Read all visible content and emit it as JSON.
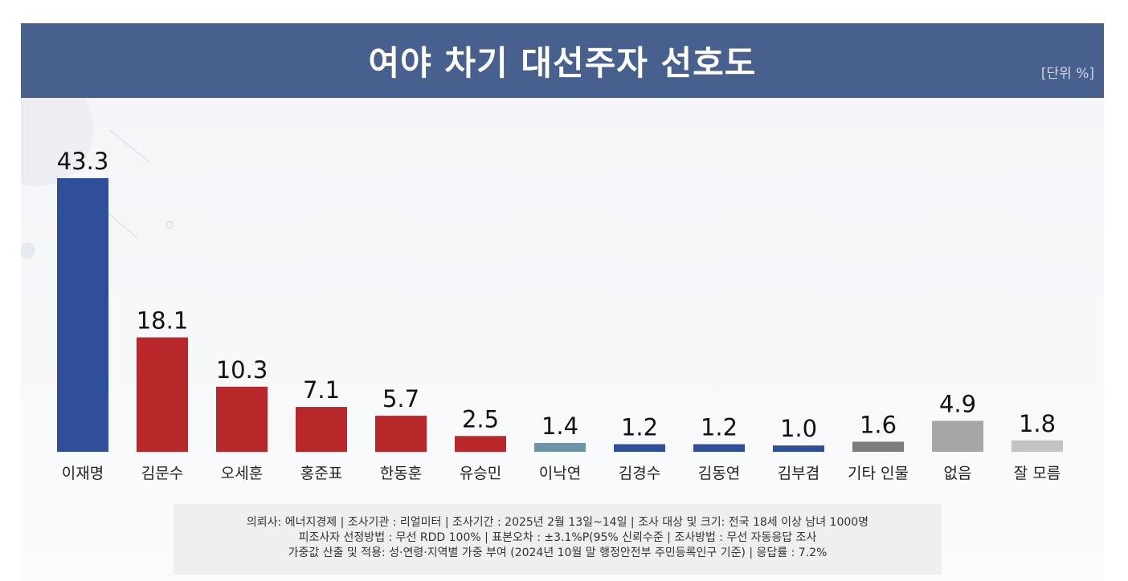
{
  "header": {
    "title": "여야 차기 대선주자 선호도",
    "unit": "[단위 %]"
  },
  "chart_data": {
    "type": "bar",
    "title": "여야 차기 대선주자 선호도",
    "unit_label": "[단위 %]",
    "categories": [
      "이재명",
      "김문수",
      "오세훈",
      "홍준표",
      "한동훈",
      "유승민",
      "이낙연",
      "김경수",
      "김동연",
      "김부겸",
      "기타 인물",
      "없음",
      "잘 모름"
    ],
    "values": [
      43.3,
      18.1,
      10.3,
      7.1,
      5.7,
      2.5,
      1.4,
      1.2,
      1.2,
      1.0,
      1.6,
      4.9,
      1.8
    ],
    "value_labels": [
      "43.3",
      "18.1",
      "10.3",
      "7.1",
      "5.7",
      "2.5",
      "1.4",
      "1.2",
      "1.2",
      "1.0",
      "1.6",
      "4.9",
      "1.8"
    ],
    "colors": [
      "#2f4f9a",
      "#b8282b",
      "#b8282b",
      "#b8282b",
      "#b8282b",
      "#b8282b",
      "#6e93a8",
      "#2f4f9a",
      "#2f4f9a",
      "#2f4f9a",
      "#7c7c7c",
      "#a6a6a6",
      "#c2c2c2"
    ],
    "ylim": [
      0,
      45
    ],
    "grid": false,
    "legend": "none",
    "xlabel": "",
    "ylabel": ""
  },
  "footer": {
    "lines": [
      "의뢰사: 에너지경제 | 조사기관 : 리얼미터  |  조사기간 : 2025년 2월 13일~14일 | 조사 대상 및 크기: 전국 18세 이상 남녀 1000명",
      "피조사자 선정방법 : 무선 RDD 100% | 표본오차 : ±3.1%P(95% 신뢰수준 | 조사방법 : 무선 자동응답 조사",
      "가중값 산출 및 적용: 성·연령·지역별 가중 부여 (2024년 10월 말 행정안전부 주민등록인구 기준) | 응답률 : 7.2%"
    ]
  }
}
